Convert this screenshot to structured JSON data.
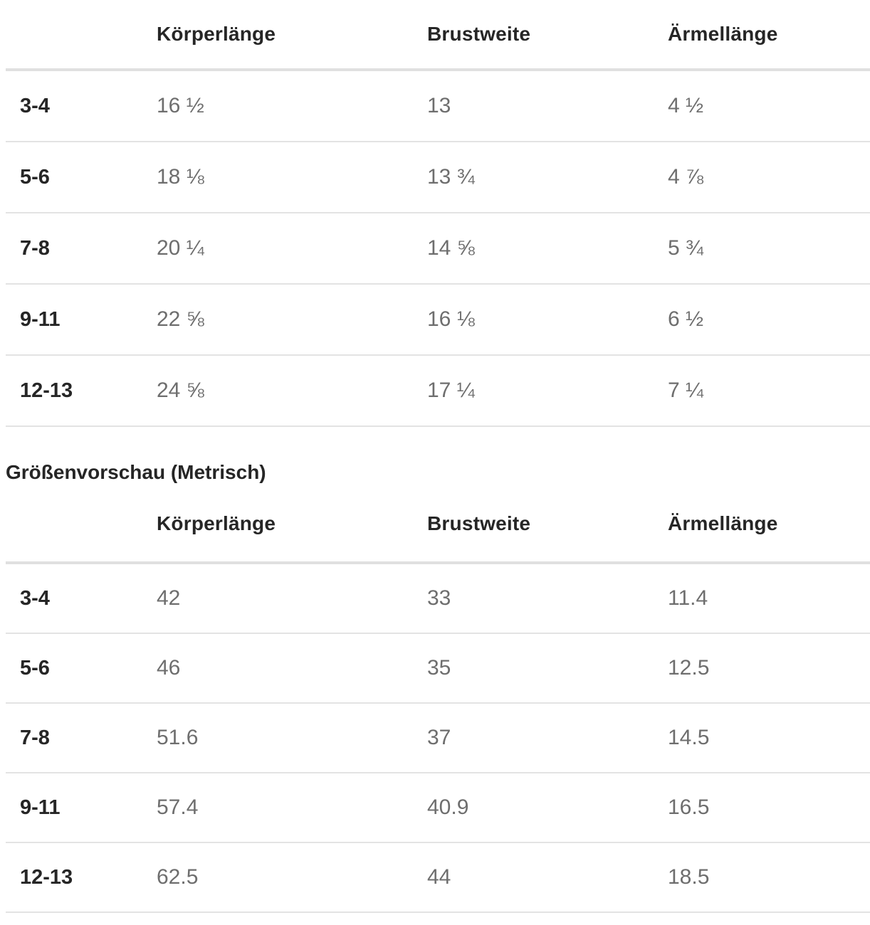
{
  "colors": {
    "heading_text": "#262626",
    "column_header_text": "#262626",
    "size_label_text": "#262626",
    "value_text": "#6e6e6e",
    "row_divider": "#e3e3e3",
    "header_divider": "#e0e0e0",
    "background": "#ffffff"
  },
  "imperial_table": {
    "columns": [
      "Körperlänge",
      "Brustweite",
      "Ärmellänge"
    ],
    "rows": [
      {
        "size": "3-4",
        "values": [
          "16 ½",
          "13",
          "4 ½"
        ]
      },
      {
        "size": "5-6",
        "values": [
          "18 ⅛",
          "13 ¾",
          "4 ⅞"
        ]
      },
      {
        "size": "7-8",
        "values": [
          "20 ¼",
          "14 ⅝",
          "5 ¾"
        ]
      },
      {
        "size": "9-11",
        "values": [
          "22 ⅝",
          "16 ⅛",
          "6 ½"
        ]
      },
      {
        "size": "12-13",
        "values": [
          "24 ⅝",
          "17 ¼",
          "7 ¼"
        ]
      }
    ]
  },
  "metric_table": {
    "heading": "Größenvorschau (Metrisch)",
    "columns": [
      "Körperlänge",
      "Brustweite",
      "Ärmellänge"
    ],
    "rows": [
      {
        "size": "3-4",
        "values": [
          "42",
          "33",
          "11.4"
        ]
      },
      {
        "size": "5-6",
        "values": [
          "46",
          "35",
          "12.5"
        ]
      },
      {
        "size": "7-8",
        "values": [
          "51.6",
          "37",
          "14.5"
        ]
      },
      {
        "size": "9-11",
        "values": [
          "57.4",
          "40.9",
          "16.5"
        ]
      },
      {
        "size": "12-13",
        "values": [
          "62.5",
          "44",
          "18.5"
        ]
      }
    ]
  }
}
